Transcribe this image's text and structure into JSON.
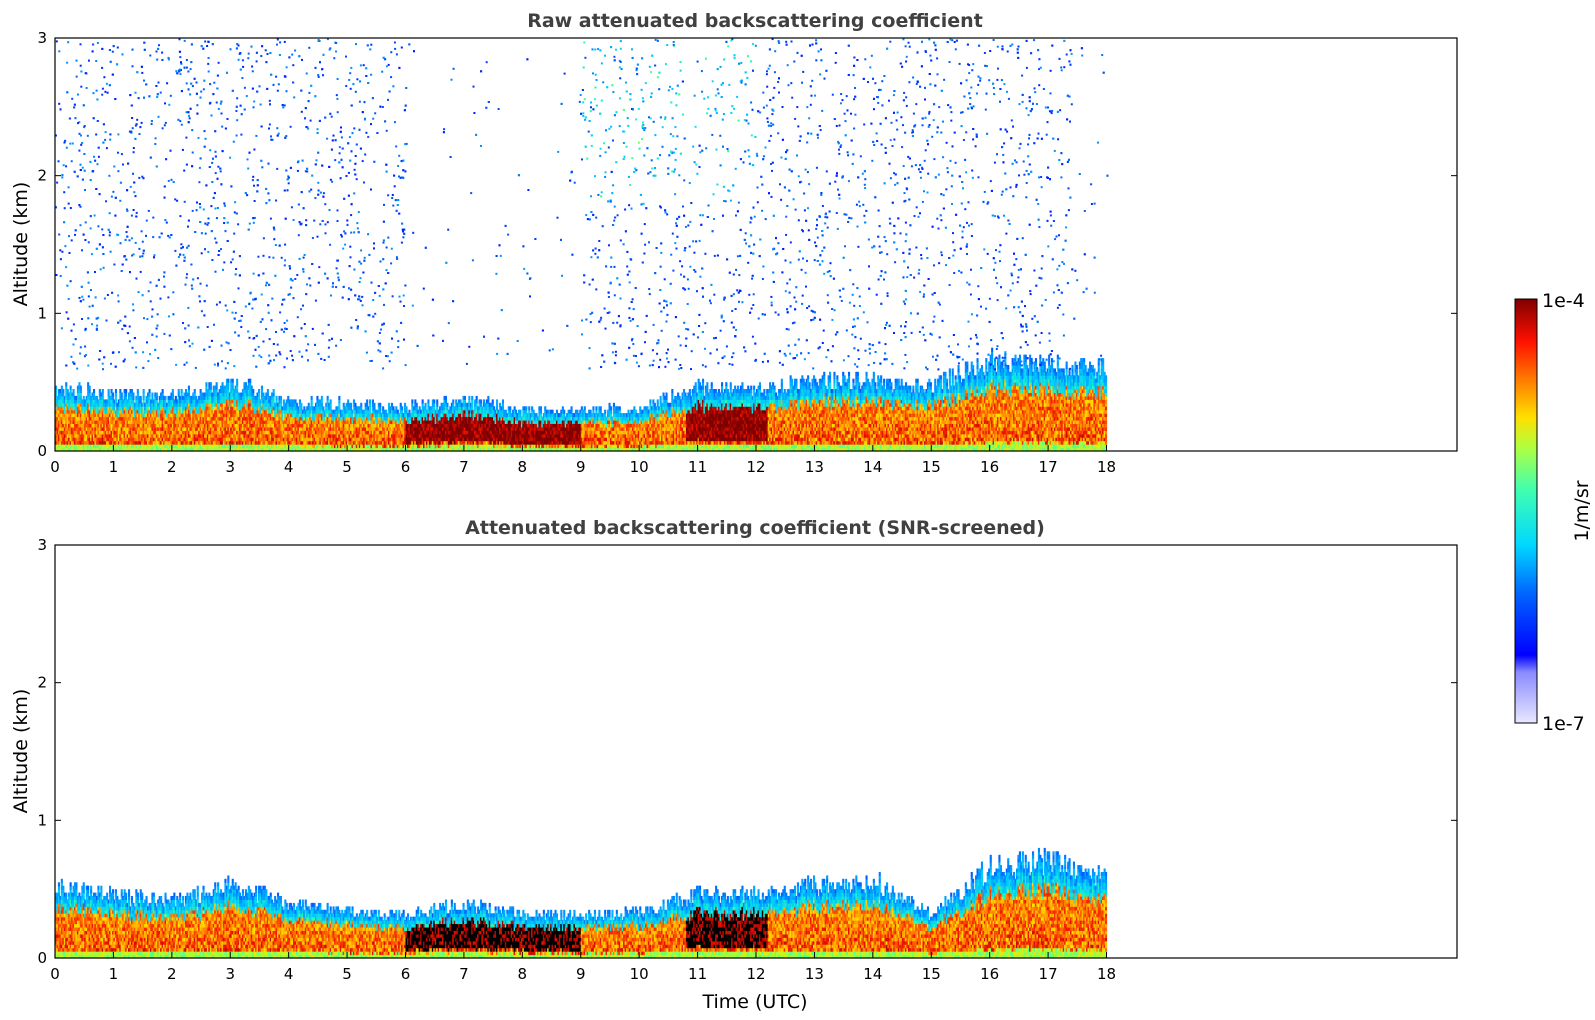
{
  "chart_data": [
    {
      "type": "heatmap",
      "id": "raw",
      "title": "Raw attenuated backscattering coefficient",
      "xlabel": "",
      "ylabel": "Altitude (km)",
      "xlim": [
        0,
        24
      ],
      "ylim": [
        0,
        3
      ],
      "x_ticks": [
        0,
        1,
        2,
        3,
        4,
        5,
        6,
        7,
        8,
        9,
        10,
        11,
        12,
        13,
        14,
        15,
        16,
        17,
        18
      ],
      "y_ticks": [
        0,
        1,
        2,
        3
      ],
      "data_end_time": 18,
      "noise_region_top_km": 3,
      "screened": false,
      "layer_top_km": [
        [
          0,
          0.45
        ],
        [
          1,
          0.4
        ],
        [
          2,
          0.38
        ],
        [
          3,
          0.5
        ],
        [
          4,
          0.35
        ],
        [
          5,
          0.33
        ],
        [
          6,
          0.3
        ],
        [
          7,
          0.36
        ],
        [
          8,
          0.28
        ],
        [
          9,
          0.28
        ],
        [
          10,
          0.3
        ],
        [
          11,
          0.45
        ],
        [
          12,
          0.42
        ],
        [
          13,
          0.5
        ],
        [
          14,
          0.5
        ],
        [
          15,
          0.45
        ],
        [
          16,
          0.65
        ],
        [
          17,
          0.6
        ],
        [
          18,
          0.58
        ]
      ]
    },
    {
      "type": "heatmap",
      "id": "screened",
      "title": "Attenuated backscattering coefficient (SNR-screened)",
      "xlabel": "Time (UTC)",
      "ylabel": "Altitude (km)",
      "xlim": [
        0,
        24
      ],
      "ylim": [
        0,
        3
      ],
      "x_ticks": [
        0,
        1,
        2,
        3,
        4,
        5,
        6,
        7,
        8,
        9,
        10,
        11,
        12,
        13,
        14,
        15,
        16,
        17,
        18
      ],
      "y_ticks": [
        0,
        1,
        2,
        3
      ],
      "data_end_time": 18,
      "screened": true,
      "layer_top_km": [
        [
          0,
          0.5
        ],
        [
          1,
          0.45
        ],
        [
          2,
          0.4
        ],
        [
          3,
          0.52
        ],
        [
          4,
          0.38
        ],
        [
          5,
          0.33
        ],
        [
          6,
          0.3
        ],
        [
          7,
          0.38
        ],
        [
          8,
          0.3
        ],
        [
          9,
          0.3
        ],
        [
          10,
          0.32
        ],
        [
          11,
          0.45
        ],
        [
          12,
          0.45
        ],
        [
          13,
          0.52
        ],
        [
          14,
          0.55
        ],
        [
          15,
          0.3
        ],
        [
          16,
          0.65
        ],
        [
          17,
          0.7
        ],
        [
          18,
          0.58
        ]
      ]
    }
  ],
  "colorbar": {
    "label": "1/m/sr",
    "min_label": "1e-7",
    "max_label": "1e-4",
    "colormap": "jet",
    "scale": "log"
  }
}
